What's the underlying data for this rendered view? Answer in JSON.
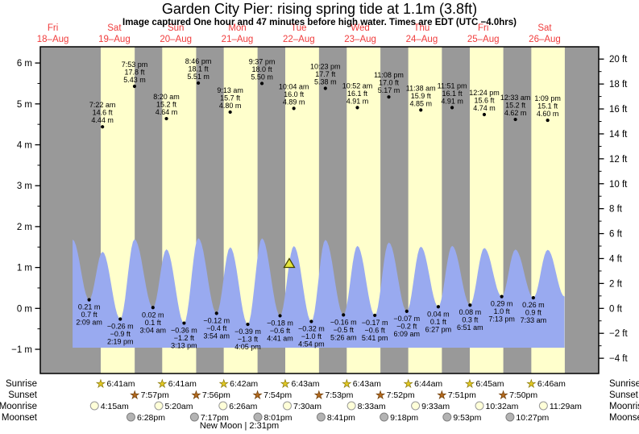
{
  "title": "Garden City Pier: rising  spring tide at 1.1m (3.8ft)",
  "subtitle": "Image captured One hour and 47 minutes before high water. Times are EDT (UTC −4.0hrs)",
  "moon_phase": "New Moon | 2:31pm",
  "row_labels": {
    "sunrise": "Sunrise",
    "sunset": "Sunset",
    "moonrise": "Moonrise",
    "moonset": "Moonset"
  },
  "colors": {
    "night_band": "#999999",
    "day_band": "#ffffcc",
    "tide_fill": "#99aaf0",
    "day_label": "#f03c3c",
    "sunrise_star": "#e2c822",
    "sunrise_star_stroke": "#8a7a10",
    "sunset_star": "#b2691e",
    "sunset_star_stroke": "#6e3d08",
    "moonrise_fill": "#ffffd8",
    "moonrise_stroke": "#999999",
    "moonset_fill": "#b3b3b3",
    "moonset_stroke": "#808080",
    "marker_fill": "#e6e63c",
    "marker_stroke": "#444400"
  },
  "chart_data": {
    "type": "area",
    "title": "Garden City Pier: rising  spring tide at 1.1m (3.8ft)",
    "y_axis_left": {
      "unit": "m",
      "ticks": [
        {
          "v": 6,
          "label": "6 m"
        },
        {
          "v": 5,
          "label": "5 m"
        },
        {
          "v": 4,
          "label": "4 m"
        },
        {
          "v": 3,
          "label": "3 m"
        },
        {
          "v": 2,
          "label": "2 m"
        },
        {
          "v": 1,
          "label": "1 m"
        },
        {
          "v": 0,
          "label": "0 m"
        },
        {
          "v": -1,
          "label": "−1 m"
        }
      ]
    },
    "y_axis_right": {
      "unit": "ft",
      "ticks": [
        {
          "v": 20,
          "label": "20 ft"
        },
        {
          "v": 18,
          "label": "18 ft"
        },
        {
          "v": 16,
          "label": "16 ft"
        },
        {
          "v": 14,
          "label": "14 ft"
        },
        {
          "v": 12,
          "label": "12 ft"
        },
        {
          "v": 10,
          "label": "10 ft"
        },
        {
          "v": 8,
          "label": "8 ft"
        },
        {
          "v": 6,
          "label": "6 ft"
        },
        {
          "v": 4,
          "label": "4 ft"
        },
        {
          "v": 2,
          "label": "2 ft"
        },
        {
          "v": 0,
          "label": "0 ft"
        },
        {
          "v": -2,
          "label": "−2 ft"
        },
        {
          "v": -4,
          "label": "−4 ft"
        }
      ]
    },
    "days": [
      {
        "weekday": "Fri",
        "date": "18–Aug"
      },
      {
        "weekday": "Sat",
        "date": "19–Aug"
      },
      {
        "weekday": "Sun",
        "date": "20–Aug"
      },
      {
        "weekday": "Mon",
        "date": "21–Aug"
      },
      {
        "weekday": "Tue",
        "date": "22–Aug"
      },
      {
        "weekday": "Wed",
        "date": "23–Aug"
      },
      {
        "weekday": "Thu",
        "date": "24–Aug"
      },
      {
        "weekday": "Fri",
        "date": "25–Aug"
      },
      {
        "weekday": "Sat",
        "date": "26–Aug"
      }
    ],
    "tide_events": [
      {
        "day": 1,
        "time": "2:09 am",
        "type": "low",
        "m": "0.21 m",
        "ft": "0.7 ft"
      },
      {
        "day": 1,
        "time": "7:22 am",
        "type": "high",
        "m": "4.44 m",
        "ft": "14.6 ft"
      },
      {
        "day": 1,
        "time": "2:19 pm",
        "type": "low",
        "m": "-0.26 m",
        "ft": "-0.9 ft"
      },
      {
        "day": 1,
        "time": "7:53 pm",
        "type": "high",
        "m": "5.43 m",
        "ft": "17.8 ft"
      },
      {
        "day": 2,
        "time": "3:04 am",
        "type": "low",
        "m": "0.02 m",
        "ft": "0.1 ft"
      },
      {
        "day": 2,
        "time": "8:20 am",
        "type": "high",
        "m": "4.64 m",
        "ft": "15.2 ft"
      },
      {
        "day": 2,
        "time": "3:13 pm",
        "type": "low",
        "m": "-0.36 m",
        "ft": "-1.2 ft"
      },
      {
        "day": 2,
        "time": "8:46 pm",
        "type": "high",
        "m": "5.51 m",
        "ft": "18.1 ft"
      },
      {
        "day": 3,
        "time": "3:54 am",
        "type": "low",
        "m": "-0.12 m",
        "ft": "-0.4 ft"
      },
      {
        "day": 3,
        "time": "9:13 am",
        "type": "high",
        "m": "4.80 m",
        "ft": "15.7 ft"
      },
      {
        "day": 3,
        "time": "4:05 pm",
        "type": "low",
        "m": "-0.39 m",
        "ft": "-1.3 ft"
      },
      {
        "day": 3,
        "time": "9:37 pm",
        "type": "high",
        "m": "5.50 m",
        "ft": "18.0 ft"
      },
      {
        "day": 4,
        "time": "4:41 am",
        "type": "low",
        "m": "-0.18 m",
        "ft": "-0.6 ft"
      },
      {
        "day": 4,
        "time": "10:04 am",
        "type": "high",
        "m": "4.89 m",
        "ft": "16.0 ft"
      },
      {
        "day": 4,
        "time": "4:54 pm",
        "type": "low",
        "m": "-0.32 m",
        "ft": "-1.0 ft"
      },
      {
        "day": 4,
        "time": "10:23 pm",
        "type": "high",
        "m": "5.38 m",
        "ft": "17.7 ft"
      },
      {
        "day": 5,
        "time": "5:26 am",
        "type": "low",
        "m": "-0.16 m",
        "ft": "-0.5 ft"
      },
      {
        "day": 5,
        "time": "10:52 am",
        "type": "high",
        "m": "4.91 m",
        "ft": "16.1 ft"
      },
      {
        "day": 5,
        "time": "5:41 pm",
        "type": "low",
        "m": "-0.17 m",
        "ft": "-0.6 ft"
      },
      {
        "day": 5,
        "time": "11:08 pm",
        "type": "high",
        "m": "5.17 m",
        "ft": "17.0 ft"
      },
      {
        "day": 6,
        "time": "6:09 am",
        "type": "low",
        "m": "-0.07 m",
        "ft": "-0.2 ft"
      },
      {
        "day": 6,
        "time": "11:38 am",
        "type": "high",
        "m": "4.85 m",
        "ft": "15.9 ft"
      },
      {
        "day": 6,
        "time": "6:27 pm",
        "type": "low",
        "m": "0.04 m",
        "ft": "0.1 ft"
      },
      {
        "day": 6,
        "time": "11:51 pm",
        "type": "high",
        "m": "4.91 m",
        "ft": "16.1 ft"
      },
      {
        "day": 7,
        "time": "6:51 am",
        "type": "low",
        "m": "0.08 m",
        "ft": "0.3 ft"
      },
      {
        "day": 7,
        "time": "12:24 pm",
        "type": "high",
        "m": "4.74 m",
        "ft": "15.6 ft"
      },
      {
        "day": 7,
        "time": "7:13 pm",
        "type": "low",
        "m": "0.29 m",
        "ft": "1.0 ft"
      },
      {
        "day": 8,
        "time": "12:33 am",
        "type": "high",
        "m": "4.62 m",
        "ft": "15.2 ft"
      },
      {
        "day": 8,
        "time": "7:33 am",
        "type": "low",
        "m": "0.26 m",
        "ft": "0.9 ft"
      },
      {
        "day": 8,
        "time": "1:09 pm",
        "type": "high",
        "m": "4.60 m",
        "ft": "15.1 ft"
      }
    ],
    "current_marker": {
      "day": 4,
      "time": "8:17 am",
      "height_m": 1.1
    },
    "sun": {
      "sunrise": [
        {
          "day": 1,
          "time": "6:41am"
        },
        {
          "day": 2,
          "time": "6:41am"
        },
        {
          "day": 3,
          "time": "6:42am"
        },
        {
          "day": 4,
          "time": "6:43am"
        },
        {
          "day": 5,
          "time": "6:43am"
        },
        {
          "day": 6,
          "time": "6:44am"
        },
        {
          "day": 7,
          "time": "6:45am"
        },
        {
          "day": 8,
          "time": "6:46am"
        }
      ],
      "sunset": [
        {
          "day": 1,
          "time": "7:57pm"
        },
        {
          "day": 2,
          "time": "7:56pm"
        },
        {
          "day": 3,
          "time": "7:54pm"
        },
        {
          "day": 4,
          "time": "7:53pm"
        },
        {
          "day": 5,
          "time": "7:52pm"
        },
        {
          "day": 6,
          "time": "7:51pm"
        },
        {
          "day": 7,
          "time": "7:50pm"
        }
      ]
    },
    "moon": {
      "moonrise": [
        {
          "day": 1,
          "time": "4:15am"
        },
        {
          "day": 2,
          "time": "5:20am"
        },
        {
          "day": 3,
          "time": "6:26am"
        },
        {
          "day": 4,
          "time": "7:30am"
        },
        {
          "day": 5,
          "time": "8:33am"
        },
        {
          "day": 6,
          "time": "9:33am"
        },
        {
          "day": 7,
          "time": "10:32am"
        },
        {
          "day": 8,
          "time": "11:29am"
        }
      ],
      "moonset": [
        {
          "day": 1,
          "time": "6:28pm"
        },
        {
          "day": 2,
          "time": "7:17pm"
        },
        {
          "day": 3,
          "time": "8:01pm"
        },
        {
          "day": 4,
          "time": "8:41pm"
        },
        {
          "day": 5,
          "time": "9:18pm"
        },
        {
          "day": 6,
          "time": "9:53pm"
        },
        {
          "day": 7,
          "time": "10:27pm"
        }
      ]
    }
  }
}
